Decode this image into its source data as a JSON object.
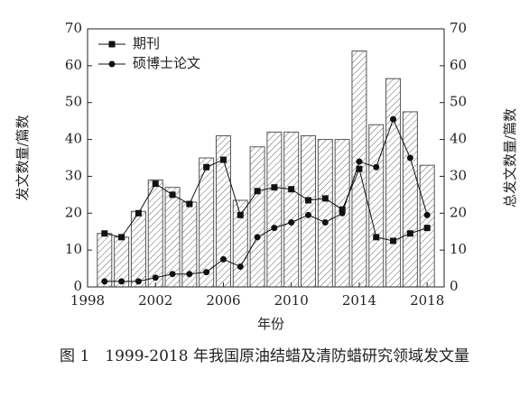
{
  "chart_data": {
    "type": "bar-line",
    "caption": "图 1　1999-2018 年我国原油结蜡及清防蜡研究领域发文量",
    "xlabel": "年份",
    "ylabel": "发文数量/篇数",
    "y2label": "总发文数量/篇数",
    "x": [
      1999,
      2000,
      2001,
      2002,
      2003,
      2004,
      2005,
      2006,
      2007,
      2008,
      2009,
      2010,
      2011,
      2012,
      2013,
      2014,
      2015,
      2016,
      2017,
      2018
    ],
    "xlim": [
      1998,
      2019
    ],
    "xticks": [
      1998,
      2002,
      2006,
      2010,
      2014,
      2018
    ],
    "ylim": [
      0,
      70
    ],
    "yticks": [
      0,
      10,
      20,
      30,
      40,
      50,
      60,
      70
    ],
    "y2lim": [
      0,
      70
    ],
    "y2ticks": [
      0,
      10,
      20,
      30,
      40,
      50,
      60,
      70
    ],
    "legend": "upper left",
    "series": [
      {
        "type": "bar",
        "axis": "y2",
        "color": "#555555",
        "values": [
          14.5,
          13.5,
          20.5,
          29,
          27,
          23,
          35,
          41,
          23.5,
          38,
          42,
          42,
          41,
          40,
          40,
          64,
          44,
          56.5,
          47.5,
          33
        ]
      },
      {
        "name": "期刊",
        "type": "line",
        "marker": "square",
        "color": "#111111",
        "values": [
          14.5,
          13.5,
          20,
          28,
          25,
          22.5,
          32.5,
          34.5,
          19.5,
          26,
          27,
          26.5,
          23.5,
          24,
          21,
          32,
          13.5,
          12.5,
          14.5,
          16
        ]
      },
      {
        "name": "硕博士论文",
        "type": "line",
        "marker": "circle",
        "color": "#111111",
        "values": [
          1.5,
          1.5,
          1.5,
          2.5,
          3.5,
          3.5,
          4,
          7.5,
          5.5,
          13.5,
          16,
          17.5,
          19.5,
          17.5,
          20,
          34,
          32.5,
          45.5,
          35,
          19.5
        ]
      }
    ]
  }
}
